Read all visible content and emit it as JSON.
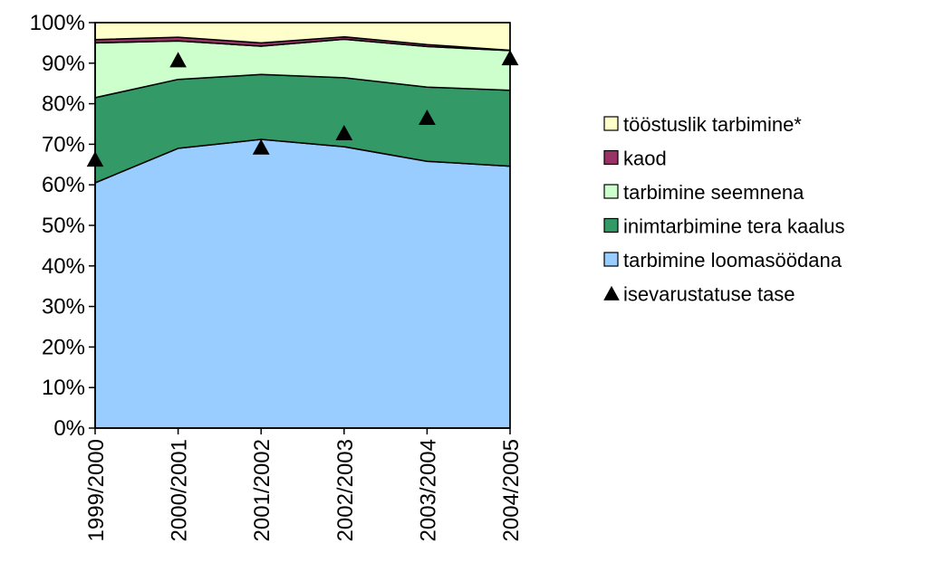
{
  "chart_data": {
    "type": "area",
    "stacked": "percent",
    "x": [
      "1999/2000",
      "2000/2001",
      "2001/2002",
      "2002/2003",
      "2003/2004",
      "2004/2005"
    ],
    "ylim": [
      0,
      100
    ],
    "yticks": [
      "0%",
      "10%",
      "20%",
      "30%",
      "40%",
      "50%",
      "60%",
      "70%",
      "80%",
      "90%",
      "100%"
    ],
    "grid": false,
    "legend_position": "right",
    "series": [
      {
        "name": "tarbimine loomasöödana",
        "color": "#99ccff",
        "values": [
          60.5,
          69,
          71.2,
          69.4,
          65.8,
          64.6
        ]
      },
      {
        "name": "inimtarbimine tera kaalus",
        "color": "#339966",
        "values": [
          21,
          17,
          16,
          17,
          18.3,
          18.7
        ]
      },
      {
        "name": "tarbimine seemnena",
        "color": "#ccffcc",
        "values": [
          13.5,
          9.5,
          7,
          9.5,
          10,
          9.8
        ]
      },
      {
        "name": "kaod",
        "color": "#993366",
        "values": [
          0.8,
          0.9,
          0.8,
          0.6,
          0.5,
          0.1
        ]
      },
      {
        "name": "tööstuslik tarbimine*",
        "color": "#ffffcc",
        "values": [
          4.2,
          3.6,
          5,
          3.5,
          5.4,
          6.8
        ]
      }
    ],
    "markers": {
      "name": "isevarustatuse tase",
      "shape": "triangle",
      "color": "#000000",
      "values": [
        66,
        90.5,
        69,
        72.5,
        76.3,
        91
      ]
    },
    "legend_order": [
      "tööstuslik tarbimine*",
      "kaod",
      "tarbimine seemnena",
      "inimtarbimine tera kaalus",
      "tarbimine loomasöödana",
      "isevarustatuse tase"
    ]
  }
}
